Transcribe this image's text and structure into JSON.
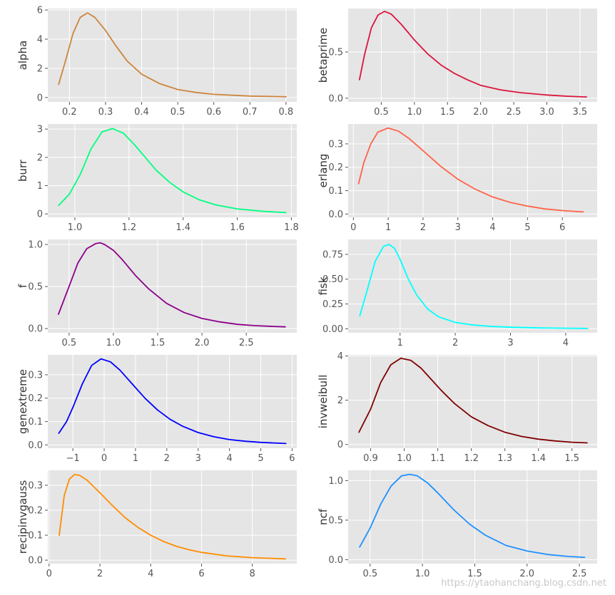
{
  "watermark": "https://ytaohanchang.blog.csdn.net",
  "chart_data": [
    {
      "type": "line",
      "ylabel": "alpha",
      "color": "#cd853f",
      "xlim": [
        0.14,
        0.83
      ],
      "ylim": [
        -0.3,
        6.1
      ],
      "xticks": [
        0.2,
        0.3,
        0.4,
        0.5,
        0.6,
        0.7,
        0.8
      ],
      "xtick_labels": [
        "0.2",
        "0.3",
        "0.4",
        "0.5",
        "0.6",
        "0.7",
        "0.8"
      ],
      "yticks": [
        0,
        2,
        4,
        6
      ],
      "ytick_labels": [
        "0",
        "2",
        "4",
        "6"
      ],
      "x": [
        0.17,
        0.19,
        0.21,
        0.23,
        0.25,
        0.27,
        0.3,
        0.33,
        0.36,
        0.4,
        0.45,
        0.5,
        0.55,
        0.6,
        0.7,
        0.8
      ],
      "y": [
        0.9,
        2.6,
        4.4,
        5.5,
        5.8,
        5.5,
        4.6,
        3.5,
        2.5,
        1.6,
        0.95,
        0.55,
        0.35,
        0.22,
        0.1,
        0.05
      ]
    },
    {
      "type": "line",
      "ylabel": "betaprime",
      "color": "#dc143c",
      "xlim": [
        0.0,
        3.76
      ],
      "ylim": [
        -0.04,
        0.97
      ],
      "xticks": [
        0.5,
        1.0,
        1.5,
        2.0,
        2.5,
        3.0,
        3.5
      ],
      "xtick_labels": [
        "0.5",
        "1.0",
        "1.5",
        "2.0",
        "2.5",
        "3.0",
        "3.5"
      ],
      "yticks": [
        0.0,
        0.5
      ],
      "ytick_labels": [
        "0.0",
        "0.5"
      ],
      "x": [
        0.17,
        0.25,
        0.35,
        0.45,
        0.55,
        0.65,
        0.8,
        1.0,
        1.2,
        1.4,
        1.6,
        1.8,
        2.0,
        2.3,
        2.6,
        3.0,
        3.3,
        3.6
      ],
      "y": [
        0.2,
        0.48,
        0.76,
        0.9,
        0.94,
        0.91,
        0.8,
        0.63,
        0.48,
        0.36,
        0.27,
        0.2,
        0.14,
        0.09,
        0.06,
        0.035,
        0.022,
        0.013
      ]
    },
    {
      "type": "line",
      "ylabel": "burr",
      "color": "#00ff7f",
      "xlim": [
        0.9,
        1.82
      ],
      "ylim": [
        -0.12,
        3.18
      ],
      "xticks": [
        1.0,
        1.2,
        1.4,
        1.6,
        1.8
      ],
      "xtick_labels": [
        "1.0",
        "1.2",
        "1.4",
        "1.6",
        "1.8"
      ],
      "yticks": [
        0,
        1,
        2,
        3
      ],
      "ytick_labels": [
        "0",
        "1",
        "2",
        "3"
      ],
      "x": [
        0.94,
        0.98,
        1.02,
        1.06,
        1.1,
        1.14,
        1.18,
        1.22,
        1.26,
        1.3,
        1.35,
        1.4,
        1.46,
        1.52,
        1.6,
        1.7,
        1.78
      ],
      "y": [
        0.3,
        0.7,
        1.4,
        2.3,
        2.9,
        3.02,
        2.85,
        2.45,
        2.0,
        1.55,
        1.12,
        0.78,
        0.5,
        0.32,
        0.18,
        0.09,
        0.05
      ]
    },
    {
      "type": "line",
      "ylabel": "erlang",
      "color": "#ff6347",
      "xlim": [
        -0.15,
        7.0
      ],
      "ylim": [
        -0.014,
        0.385
      ],
      "xticks": [
        0,
        1,
        2,
        3,
        4,
        5,
        6
      ],
      "xtick_labels": [
        "0",
        "1",
        "2",
        "3",
        "4",
        "5",
        "6"
      ],
      "yticks": [
        0.0,
        0.1,
        0.2,
        0.3
      ],
      "ytick_labels": [
        "0.0",
        "0.1",
        "0.2",
        "0.3"
      ],
      "x": [
        0.15,
        0.3,
        0.5,
        0.7,
        1.0,
        1.3,
        1.6,
        2.0,
        2.5,
        3.0,
        3.5,
        4.0,
        4.5,
        5.0,
        5.5,
        6.0,
        6.6
      ],
      "y": [
        0.13,
        0.22,
        0.3,
        0.35,
        0.368,
        0.354,
        0.323,
        0.271,
        0.205,
        0.149,
        0.106,
        0.073,
        0.05,
        0.034,
        0.022,
        0.015,
        0.009
      ]
    },
    {
      "type": "line",
      "ylabel": "f",
      "color": "#8b008b",
      "xlim": [
        0.26,
        3.07
      ],
      "ylim": [
        -0.05,
        1.06
      ],
      "xticks": [
        0.5,
        1.0,
        1.5,
        2.0,
        2.5
      ],
      "xtick_labels": [
        "0.5",
        "1.0",
        "1.5",
        "2.0",
        "2.5"
      ],
      "yticks": [
        0.0,
        0.5,
        1.0
      ],
      "ytick_labels": [
        "0.0",
        "0.5",
        "1.0"
      ],
      "x": [
        0.38,
        0.5,
        0.6,
        0.7,
        0.8,
        0.85,
        0.9,
        1.0,
        1.1,
        1.25,
        1.4,
        1.6,
        1.8,
        2.0,
        2.2,
        2.4,
        2.6,
        2.8,
        2.94
      ],
      "y": [
        0.17,
        0.5,
        0.78,
        0.95,
        1.01,
        1.02,
        1.0,
        0.93,
        0.82,
        0.63,
        0.47,
        0.3,
        0.19,
        0.12,
        0.08,
        0.05,
        0.035,
        0.025,
        0.02
      ]
    },
    {
      "type": "line",
      "ylabel": "fisk",
      "color": "#00ffff",
      "xlim": [
        0.06,
        4.57
      ],
      "ylim": [
        -0.04,
        0.9
      ],
      "xticks": [
        1,
        2,
        3,
        4
      ],
      "xtick_labels": [
        "1",
        "2",
        "3",
        "4"
      ],
      "yticks": [
        0.0,
        0.25,
        0.5,
        0.75
      ],
      "ytick_labels": [
        "0.00",
        "0.25",
        "0.50",
        "0.75"
      ],
      "x": [
        0.27,
        0.4,
        0.55,
        0.7,
        0.8,
        0.9,
        1.0,
        1.15,
        1.3,
        1.5,
        1.7,
        2.0,
        2.3,
        2.6,
        3.0,
        3.5,
        4.0,
        4.4
      ],
      "y": [
        0.13,
        0.38,
        0.68,
        0.83,
        0.85,
        0.81,
        0.7,
        0.5,
        0.34,
        0.2,
        0.12,
        0.065,
        0.04,
        0.026,
        0.016,
        0.009,
        0.006,
        0.004
      ]
    },
    {
      "type": "line",
      "ylabel": "genextreme",
      "color": "#0000ff",
      "xlim": [
        -1.8,
        6.15
      ],
      "ylim": [
        -0.014,
        0.385
      ],
      "xticks": [
        -1,
        0,
        1,
        2,
        3,
        4,
        5,
        6
      ],
      "xtick_labels": [
        "−1",
        "0",
        "1",
        "2",
        "3",
        "4",
        "5",
        "6"
      ],
      "yticks": [
        0.0,
        0.1,
        0.2,
        0.3
      ],
      "ytick_labels": [
        "0.0",
        "0.1",
        "0.2",
        "0.3"
      ],
      "x": [
        -1.45,
        -1.2,
        -1.0,
        -0.7,
        -0.4,
        -0.1,
        0.2,
        0.5,
        0.9,
        1.3,
        1.7,
        2.1,
        2.5,
        3.0,
        3.5,
        4.0,
        4.5,
        5.0,
        5.8
      ],
      "y": [
        0.05,
        0.1,
        0.16,
        0.26,
        0.34,
        0.368,
        0.355,
        0.32,
        0.26,
        0.2,
        0.15,
        0.11,
        0.08,
        0.053,
        0.035,
        0.023,
        0.016,
        0.011,
        0.006
      ]
    },
    {
      "type": "line",
      "ylabel": "invweibull",
      "color": "#800000",
      "xlim": [
        0.833,
        1.575
      ],
      "ylim": [
        -0.17,
        4.05
      ],
      "xticks": [
        0.9,
        1.0,
        1.1,
        1.2,
        1.3,
        1.4,
        1.5
      ],
      "xtick_labels": [
        "0.9",
        "1.0",
        "1.1",
        "1.2",
        "1.3",
        "1.4",
        "1.5"
      ],
      "yticks": [
        0,
        2,
        4
      ],
      "ytick_labels": [
        "0",
        "2",
        "4"
      ],
      "x": [
        0.865,
        0.9,
        0.93,
        0.96,
        0.99,
        1.02,
        1.05,
        1.08,
        1.11,
        1.15,
        1.2,
        1.25,
        1.3,
        1.35,
        1.4,
        1.45,
        1.5,
        1.545
      ],
      "y": [
        0.55,
        1.6,
        2.8,
        3.6,
        3.9,
        3.8,
        3.45,
        2.95,
        2.45,
        1.85,
        1.25,
        0.85,
        0.55,
        0.36,
        0.24,
        0.16,
        0.1,
        0.07
      ]
    },
    {
      "type": "line",
      "ylabel": "recipinvgauss",
      "color": "#ff8c00",
      "xlim": [
        -0.05,
        9.75
      ],
      "ylim": [
        -0.014,
        0.36
      ],
      "xticks": [
        0,
        2,
        4,
        6,
        8
      ],
      "xtick_labels": [
        "0",
        "2",
        "4",
        "6",
        "8"
      ],
      "yticks": [
        0.0,
        0.1,
        0.2,
        0.3
      ],
      "ytick_labels": [
        "0.0",
        "0.1",
        "0.2",
        "0.3"
      ],
      "x": [
        0.4,
        0.6,
        0.8,
        1.0,
        1.2,
        1.5,
        2.0,
        2.5,
        3.0,
        3.5,
        4.0,
        4.5,
        5.0,
        5.5,
        6.0,
        7.0,
        8.0,
        9.3
      ],
      "y": [
        0.1,
        0.26,
        0.325,
        0.343,
        0.34,
        0.32,
        0.27,
        0.218,
        0.17,
        0.131,
        0.1,
        0.075,
        0.056,
        0.042,
        0.031,
        0.017,
        0.01,
        0.005
      ]
    },
    {
      "type": "line",
      "ylabel": "ncf",
      "color": "#1e90ff",
      "xlim": [
        0.29,
        2.67
      ],
      "ylim": [
        -0.05,
        1.13
      ],
      "xticks": [
        0.5,
        1.0,
        1.5,
        2.0,
        2.5
      ],
      "xtick_labels": [
        "0.5",
        "1.0",
        "1.5",
        "2.0",
        "2.5"
      ],
      "yticks": [
        0.0,
        0.5,
        1.0
      ],
      "ytick_labels": [
        "0.0",
        "0.5",
        "1.0"
      ],
      "x": [
        0.4,
        0.5,
        0.6,
        0.7,
        0.8,
        0.88,
        0.95,
        1.05,
        1.15,
        1.3,
        1.45,
        1.6,
        1.8,
        2.0,
        2.2,
        2.4,
        2.55
      ],
      "y": [
        0.16,
        0.4,
        0.7,
        0.93,
        1.06,
        1.08,
        1.06,
        0.97,
        0.84,
        0.63,
        0.45,
        0.31,
        0.18,
        0.11,
        0.065,
        0.04,
        0.03
      ]
    }
  ]
}
